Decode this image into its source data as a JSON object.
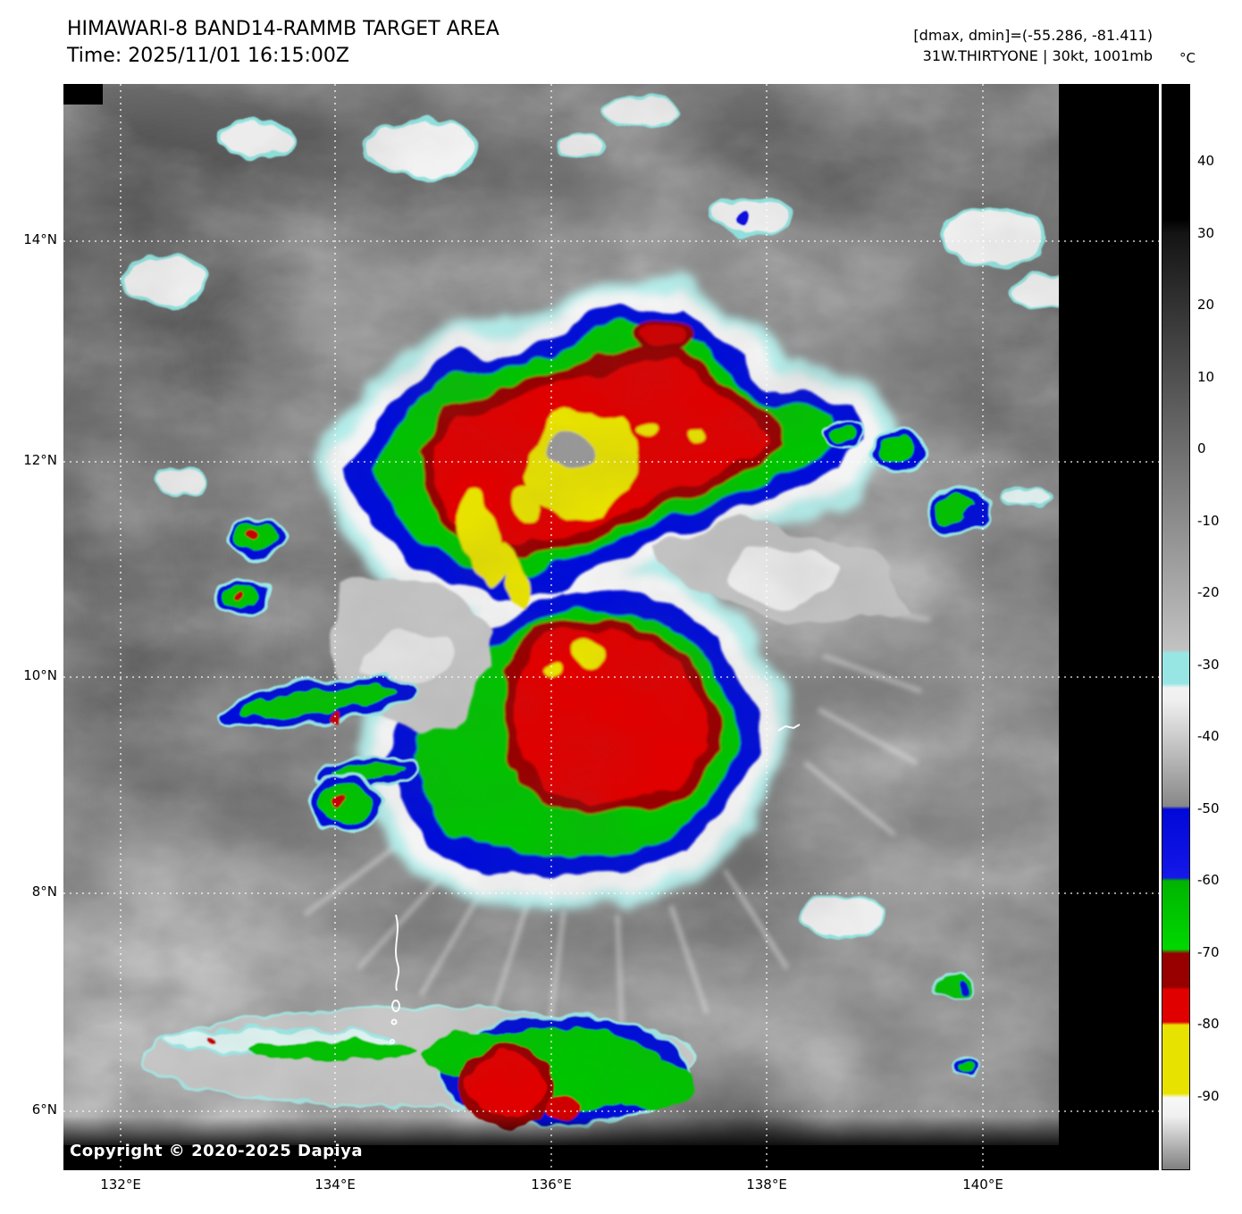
{
  "header": {
    "title": "HIMAWARI-8 BAND14-RAMMB TARGET AREA",
    "time": "Time: 2025/11/01 16:15:00Z",
    "stats": "[dmax, dmin]=(-55.286, -81.411)",
    "storm": "31W.THIRTYONE | 30kt, 1001mb"
  },
  "colorbar": {
    "unit_label": "°C",
    "ticks": [
      "40",
      "30",
      "20",
      "10",
      "0",
      "-10",
      "-20",
      "-30",
      "-40",
      "-50",
      "-60",
      "-70",
      "-80",
      "-90"
    ],
    "palette": {
      "cyan": "#98e6e4",
      "blue": "#0008d8",
      "green": "#00c400",
      "dark_red": "#980000",
      "red": "#e00000",
      "yellow": "#e8e200",
      "black": "#000000",
      "white": "#ffffff",
      "gray_background": "#787878"
    }
  },
  "map": {
    "lat_ticks": [
      "14°N",
      "12°N",
      "10°N",
      "8°N",
      "6°N"
    ],
    "lon_ticks": [
      "132°E",
      "134°E",
      "136°E",
      "138°E",
      "140°E"
    ],
    "copyright": "Copyright © 2020-2025 Dapiya"
  }
}
